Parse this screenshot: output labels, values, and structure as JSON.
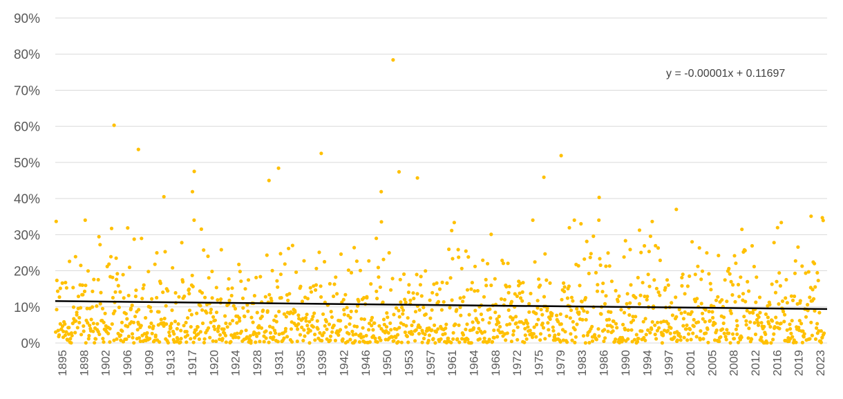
{
  "chart_data": {
    "type": "scatter",
    "title": "",
    "xlabel": "",
    "ylabel": "",
    "ylim": [
      0,
      0.9
    ],
    "y_ticks": [
      "0%",
      "10%",
      "20%",
      "30%",
      "40%",
      "50%",
      "60%",
      "70%",
      "80%",
      "90%"
    ],
    "x_range": [
      1895,
      2025
    ],
    "x_ticks": [
      "1895",
      "1898",
      "1902",
      "1906",
      "1909",
      "1913",
      "1917",
      "1920",
      "1924",
      "1928",
      "1931",
      "1935",
      "1939",
      "1942",
      "1946",
      "1950",
      "1953",
      "1957",
      "1961",
      "1964",
      "1968",
      "1972",
      "1975",
      "1979",
      "1983",
      "1986",
      "1990",
      "1994",
      "1997",
      "2001",
      "2005",
      "2008",
      "2012",
      "2016",
      "2019",
      "2023"
    ],
    "grid": "horizontal",
    "legend": "none",
    "marker_color": "#FFC000",
    "trendline_color": "#000000",
    "trendline": {
      "equation": "y = -0.00001x + 0.11697",
      "start_value": 0.116,
      "end_value": 0.094
    },
    "series": [
      {
        "points_approx": "approximately 1560 monthly values (1895–2024)",
        "notable_points": [
          {
            "x": 1904.9,
            "y": 0.603
          },
          {
            "x": 1909.0,
            "y": 0.536
          },
          {
            "x": 1913.3,
            "y": 0.405
          },
          {
            "x": 1918.4,
            "y": 0.475
          },
          {
            "x": 1918.1,
            "y": 0.419
          },
          {
            "x": 1932.6,
            "y": 0.484
          },
          {
            "x": 1931.0,
            "y": 0.45
          },
          {
            "x": 1939.8,
            "y": 0.525
          },
          {
            "x": 1951.9,
            "y": 0.784
          },
          {
            "x": 1952.9,
            "y": 0.474
          },
          {
            "x": 1956.0,
            "y": 0.457
          },
          {
            "x": 1977.3,
            "y": 0.459
          },
          {
            "x": 1980.2,
            "y": 0.519
          },
          {
            "x": 1986.6,
            "y": 0.403
          },
          {
            "x": 1949.9,
            "y": 0.419
          },
          {
            "x": 1999.6,
            "y": 0.37
          },
          {
            "x": 2022.3,
            "y": 0.351
          },
          {
            "x": 2024.2,
            "y": 0.347
          }
        ]
      }
    ]
  }
}
